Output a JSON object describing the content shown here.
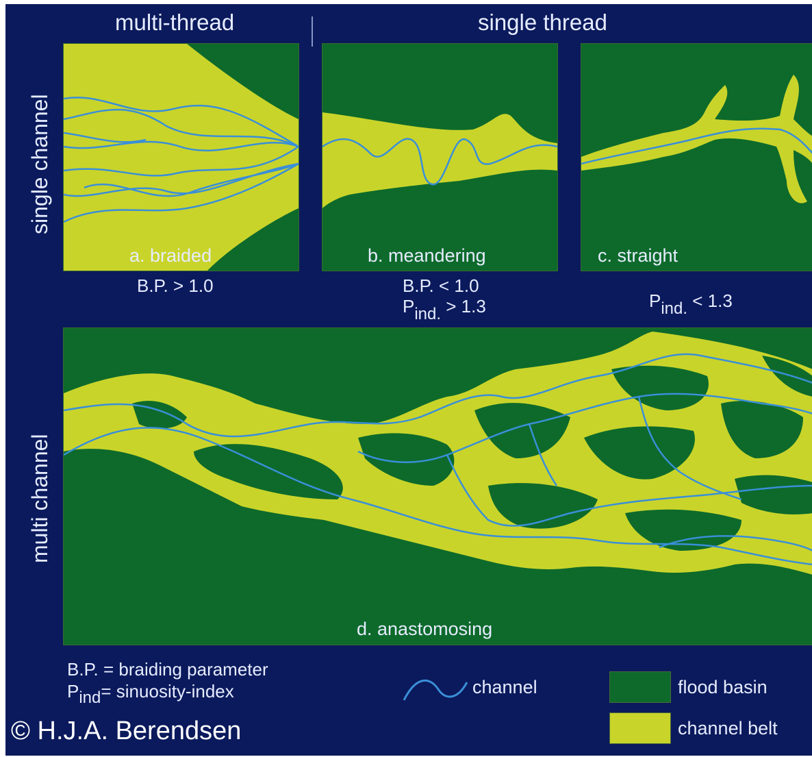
{
  "columns": {
    "multi_thread": "multi-thread",
    "single_thread": "single thread"
  },
  "rows": {
    "single_channel": "single channel",
    "multi_channel": "multi channel"
  },
  "panels": {
    "braided": {
      "label": "a. braided",
      "criterion": "B.P. > 1.0"
    },
    "meandering": {
      "label": "b. meandering",
      "criterion_line1": "B.P.  < 1.0",
      "criterion_p": "P",
      "criterion_sub": "ind.",
      "criterion_rest": " > 1.3"
    },
    "straight": {
      "label": "c. straight",
      "criterion_p": "P",
      "criterion_sub": "ind.",
      "criterion_rest": " < 1.3"
    },
    "anastomosing": {
      "label": "d. anastomosing"
    }
  },
  "definitions": {
    "bp": "B.P. = braiding parameter",
    "pind_p": "P",
    "pind_sub": "ind",
    "pind_rest": "= sinuosity-index"
  },
  "legend": {
    "channel": "channel",
    "flood_basin": "flood basin",
    "channel_belt": "channel belt"
  },
  "colors": {
    "background": "#0b1a5c",
    "flood_basin": "#0d6a2b",
    "channel_belt": "#c9d42a",
    "channel": "#3a8fd8"
  },
  "credit": "© H.J.A. Berendsen"
}
